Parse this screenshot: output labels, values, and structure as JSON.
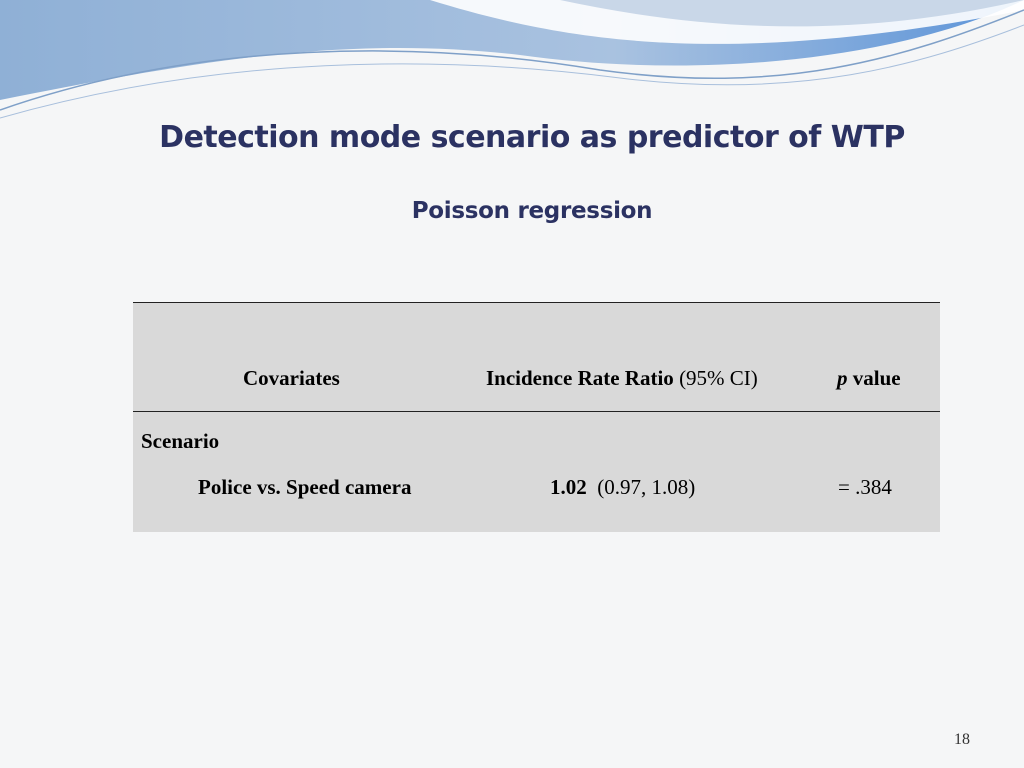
{
  "title": "Detection mode scenario as predictor of WTP",
  "subtitle": "Poisson regression",
  "table": {
    "header": {
      "covariates": "Covariates",
      "irr": "Incidence Rate Ratio",
      "ci": "(95% CI)",
      "p_italic": "p",
      "p_rest": "value"
    },
    "rows": [
      {
        "group": "Scenario"
      },
      {
        "covariate": "Police vs. Speed camera",
        "irr": "1.02",
        "ci": "(0.97, 1.08)",
        "p": "= .384"
      }
    ]
  },
  "page_number": "18"
}
